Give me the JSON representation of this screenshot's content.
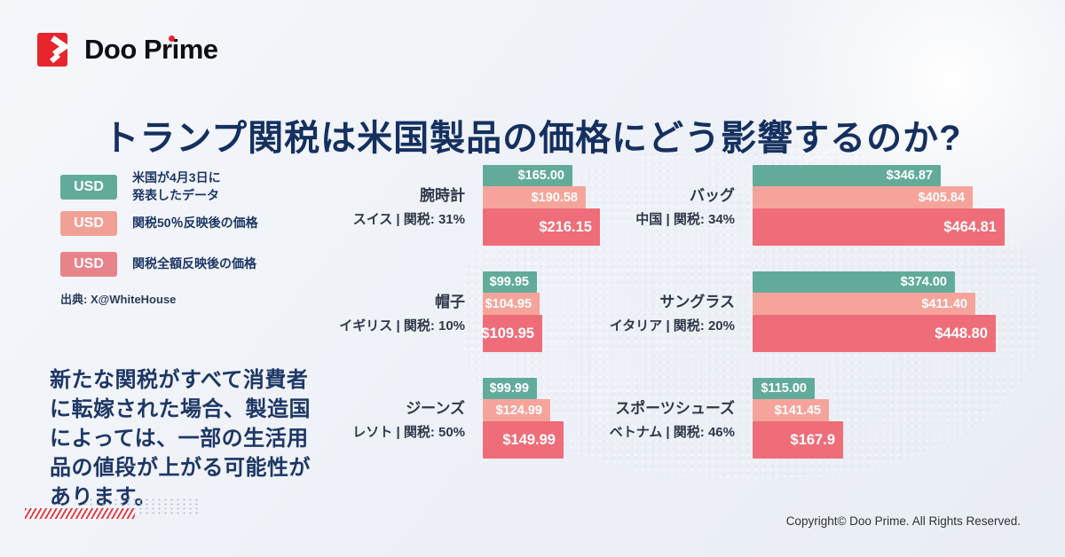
{
  "brand": {
    "name": "Doo Prime"
  },
  "title": "トランプ関税は米国製品の価格にどう影響するのか?",
  "legend": {
    "items": [
      {
        "badge": "USD",
        "color": "#62ab9b",
        "label": "米国が4月3日に\n発表したデータ"
      },
      {
        "badge": "USD",
        "color": "#f2a096",
        "label": "関税50％反映後の価格"
      },
      {
        "badge": "USD",
        "color": "#e8828b",
        "label": "関税全額反映後の価格"
      }
    ],
    "source": "出典: X@WhiteHouse"
  },
  "note": "新たな関税がすべて消費者\nに転嫁された場合、製造国\nによっては、一部の生活用\n品の値段が上がる可能性が\nあります。",
  "chart_data": {
    "type": "bar",
    "unit": "USD",
    "series": [
      "米国が4月3日に発表したデータ",
      "関税50％反映後の価格",
      "関税全額反映後の価格"
    ],
    "colors": [
      "#62ab9b",
      "#f6a49b",
      "#ee6d79"
    ],
    "items": [
      {
        "product": "腕時計",
        "origin": "スイス | 関税: 31%",
        "column": "left",
        "values": [
          165.0,
          190.58,
          216.15
        ],
        "labels": [
          "$165.00",
          "$190.58",
          "$216.15"
        ]
      },
      {
        "product": "帽子",
        "origin": "イギリス | 関税: 10%",
        "column": "left",
        "values": [
          99.95,
          104.95,
          109.95
        ],
        "labels": [
          "$99.95",
          "$104.95",
          "$109.95"
        ]
      },
      {
        "product": "ジーンズ",
        "origin": "レソト | 関税: 50%",
        "column": "left",
        "values": [
          99.99,
          124.99,
          149.99
        ],
        "labels": [
          "$99.99",
          "$124.99",
          "$149.99"
        ]
      },
      {
        "product": "バッグ",
        "origin": "中国 | 関税: 34%",
        "column": "right",
        "values": [
          346.87,
          405.84,
          464.81
        ],
        "labels": [
          "$346.87",
          "$405.84",
          "$464.81"
        ]
      },
      {
        "product": "サングラス",
        "origin": "イタリア | 関税: 20%",
        "column": "right",
        "values": [
          374.0,
          411.4,
          448.8
        ],
        "labels": [
          "$374.00",
          "$411.40",
          "$448.80"
        ]
      },
      {
        "product": "スポーツシューズ",
        "origin": "ベトナム | 関税: 46%",
        "column": "right",
        "values": [
          115.0,
          141.45,
          167.9
        ],
        "labels": [
          "$115.00",
          "$141.45",
          "$167.9"
        ]
      }
    ]
  },
  "footer": {
    "copyright": "Copyright© Doo Prime. All Rights Reserved."
  }
}
